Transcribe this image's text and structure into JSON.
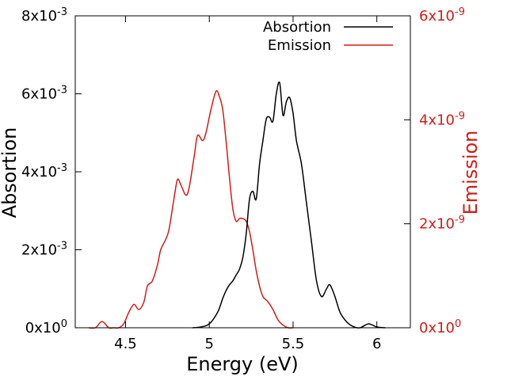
{
  "colors": {
    "absorption": "#000000",
    "emission": "#cc1f1a",
    "frame": "#000000",
    "background": "#ffffff"
  },
  "chart_data": {
    "type": "line",
    "title": "",
    "xlabel": "Energy (eV)",
    "ylabel_left": "Absortion",
    "ylabel_right": "Emission",
    "xlim": [
      4.2,
      6.2
    ],
    "ylim_left": [
      0,
      0.008
    ],
    "ylim_right": [
      0,
      6e-09
    ],
    "grid": false,
    "legend_position": "top-right",
    "x_ticks": [
      {
        "value": 4.5,
        "label": "4.5"
      },
      {
        "value": 5.0,
        "label": "5"
      },
      {
        "value": 5.5,
        "label": "5.5"
      },
      {
        "value": 6.0,
        "label": "6"
      }
    ],
    "y_left_ticks": [
      {
        "value": 0,
        "mant": "0x10",
        "exp": "0"
      },
      {
        "value": 0.002,
        "mant": "2x10",
        "exp": "-3"
      },
      {
        "value": 0.004,
        "mant": "4x10",
        "exp": "-3"
      },
      {
        "value": 0.006,
        "mant": "6x10",
        "exp": "-3"
      },
      {
        "value": 0.008,
        "mant": "8x10",
        "exp": "-3"
      }
    ],
    "y_right_ticks": [
      {
        "value": 0,
        "mant": "0x10",
        "exp": "0"
      },
      {
        "value": 2e-09,
        "mant": "2x10",
        "exp": "-9"
      },
      {
        "value": 4e-09,
        "mant": "4x10",
        "exp": "-9"
      },
      {
        "value": 6e-09,
        "mant": "6x10",
        "exp": "-9"
      }
    ],
    "series": [
      {
        "name": "Absortion",
        "axis": "left",
        "color": "#000000",
        "x": [
          4.9,
          4.95,
          5.0,
          5.05,
          5.08,
          5.1,
          5.12,
          5.14,
          5.16,
          5.18,
          5.2,
          5.22,
          5.24,
          5.26,
          5.28,
          5.3,
          5.32,
          5.34,
          5.36,
          5.38,
          5.4,
          5.42,
          5.44,
          5.46,
          5.48,
          5.5,
          5.52,
          5.55,
          5.58,
          5.61,
          5.64,
          5.67,
          5.7,
          5.72,
          5.75,
          5.78,
          5.82,
          5.86,
          5.9,
          5.95,
          6.0,
          6.05
        ],
        "y": [
          0.0,
          2e-05,
          0.0001,
          0.0004,
          0.00075,
          0.00095,
          0.0011,
          0.0012,
          0.00135,
          0.0015,
          0.0018,
          0.0024,
          0.0033,
          0.0035,
          0.0033,
          0.0042,
          0.0048,
          0.00535,
          0.0054,
          0.0053,
          0.006,
          0.00628,
          0.00545,
          0.0058,
          0.0059,
          0.0055,
          0.0048,
          0.0042,
          0.0032,
          0.0022,
          0.0012,
          0.0008,
          0.001,
          0.0011,
          0.0008,
          0.0004,
          0.00015,
          3e-05,
          0.0,
          0.0001,
          2e-05,
          0.0
        ]
      },
      {
        "name": "Emission",
        "axis": "right",
        "color": "#cc1f1a",
        "x": [
          4.28,
          4.32,
          4.36,
          4.4,
          4.43,
          4.46,
          4.49,
          4.52,
          4.55,
          4.58,
          4.61,
          4.63,
          4.66,
          4.69,
          4.71,
          4.74,
          4.76,
          4.79,
          4.81,
          4.83,
          4.86,
          4.88,
          4.91,
          4.93,
          4.96,
          4.98,
          5.01,
          5.04,
          5.06,
          5.08,
          5.1,
          5.12,
          5.14,
          5.16,
          5.18,
          5.2,
          5.22,
          5.24,
          5.26,
          5.28,
          5.3,
          5.32,
          5.35,
          5.38,
          5.41,
          5.44,
          5.47,
          5.5
        ],
        "y": [
          0.0,
          0.0,
          1.2e-10,
          0.0,
          0.0,
          0.0,
          8e-11,
          3e-10,
          4.5e-10,
          3.5e-10,
          5e-10,
          8e-10,
          9e-10,
          1.2e-09,
          1.5e-09,
          1.7e-09,
          1.9e-09,
          2.5e-09,
          2.85e-09,
          2.75e-09,
          2.55e-09,
          2.7e-09,
          3.3e-09,
          3.7e-09,
          3.6e-09,
          3.75e-09,
          4.2e-09,
          4.55e-09,
          4.45e-09,
          4.2e-09,
          3.6e-09,
          2.9e-09,
          2.3e-09,
          2.05e-09,
          2.1e-09,
          2.1e-09,
          2.05e-09,
          1.85e-09,
          1.5e-09,
          1.1e-09,
          8e-10,
          6e-10,
          5e-10,
          3.5e-10,
          1.5e-10,
          5e-11,
          0.0,
          0.0
        ]
      }
    ]
  }
}
